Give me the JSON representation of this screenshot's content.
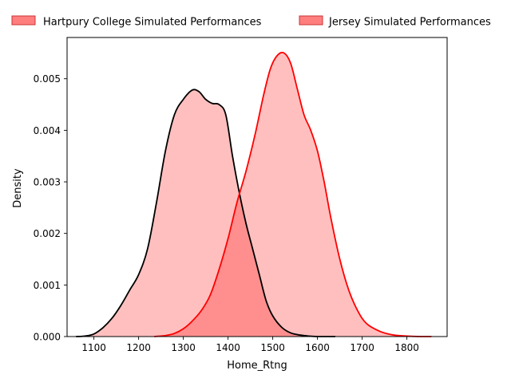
{
  "chart_data": {
    "type": "area",
    "title": "",
    "xlabel": "Home_Rtng",
    "ylabel": "Density",
    "xlim": [
      1040,
      1890
    ],
    "ylim": [
      0,
      0.0058
    ],
    "x_ticks": [
      1100,
      1200,
      1300,
      1400,
      1500,
      1600,
      1700,
      1800
    ],
    "x_tick_labels": [
      "1100",
      "1200",
      "1300",
      "1400",
      "1500",
      "1600",
      "1700",
      "1800"
    ],
    "y_ticks": [
      0,
      0.001,
      0.002,
      0.003,
      0.004,
      0.005
    ],
    "y_tick_labels": [
      "0.000",
      "0.001",
      "0.002",
      "0.003",
      "0.004",
      "0.005"
    ],
    "legend_position": "top, above plot",
    "grid": false,
    "series": [
      {
        "name": "Hartpury College Simulated Performances",
        "line_color": "#000000",
        "fill_color": "#ff0000",
        "fill_opacity": 0.25,
        "x": [
          1060,
          1080,
          1100,
          1120,
          1140,
          1160,
          1180,
          1200,
          1220,
          1240,
          1260,
          1280,
          1300,
          1320,
          1335,
          1350,
          1365,
          1380,
          1395,
          1410,
          1425,
          1440,
          1455,
          1470,
          1485,
          1500,
          1520,
          1540,
          1560,
          1580,
          1600,
          1620,
          1640
        ],
        "y": [
          0.0,
          1e-05,
          5e-05,
          0.00017,
          0.00035,
          0.0006,
          0.0009,
          0.0012,
          0.0017,
          0.0026,
          0.0036,
          0.0043,
          0.0046,
          0.00478,
          0.00475,
          0.0046,
          0.00452,
          0.0045,
          0.0043,
          0.0035,
          0.0028,
          0.0022,
          0.0017,
          0.0012,
          0.0007,
          0.0004,
          0.00018,
          7e-05,
          3e-05,
          1e-05,
          0.0,
          0.0,
          0.0
        ]
      },
      {
        "name": "Jersey Simulated Performances",
        "line_color": "#ff0000",
        "fill_color": "#ff0000",
        "fill_opacity": 0.25,
        "x": [
          1235,
          1260,
          1280,
          1300,
          1320,
          1340,
          1360,
          1380,
          1400,
          1420,
          1440,
          1460,
          1480,
          1495,
          1510,
          1525,
          1540,
          1555,
          1570,
          1585,
          1600,
          1615,
          1630,
          1650,
          1670,
          1690,
          1710,
          1740,
          1770,
          1800,
          1830,
          1855
        ],
        "y": [
          0.0,
          2e-05,
          6e-05,
          0.00015,
          0.0003,
          0.0005,
          0.0008,
          0.0013,
          0.0019,
          0.0026,
          0.0032,
          0.0039,
          0.0047,
          0.0052,
          0.00545,
          0.0055,
          0.0053,
          0.0048,
          0.0043,
          0.004,
          0.0036,
          0.003,
          0.0023,
          0.0015,
          0.0009,
          0.0005,
          0.00025,
          0.0001,
          3e-05,
          1e-05,
          0.0,
          0.0
        ]
      }
    ]
  }
}
